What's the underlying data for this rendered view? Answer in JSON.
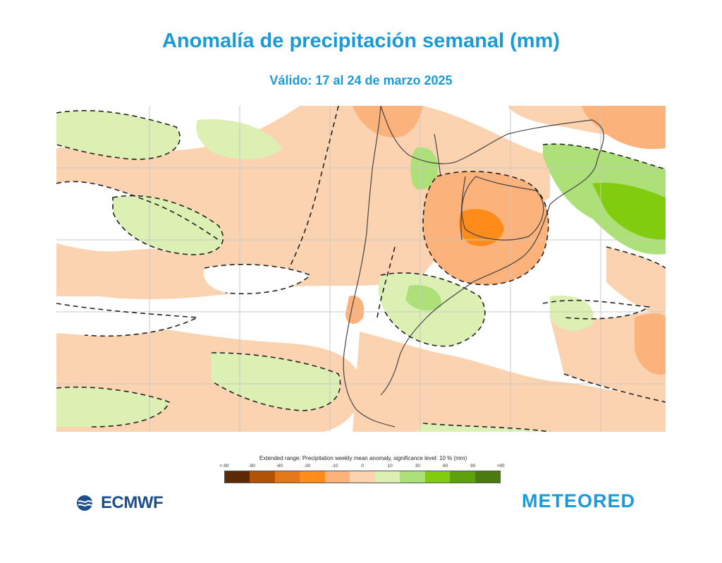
{
  "header": {
    "title": "Anomalía de precipitación semanal (mm)",
    "subtitle": "Válido: 17 al 24 de marzo 2025"
  },
  "legend": {
    "title": "Extended range: Precipitation weekly mean anomaly, significance level: 10 % (mm)",
    "tick_labels": [
      "<-90",
      "-90",
      "-60",
      "-30",
      "-10",
      "0",
      "10",
      "30",
      "60",
      "90",
      ">90"
    ],
    "colors": [
      "#5c2a06",
      "#b05307",
      "#e4781a",
      "#ff8c1a",
      "#fbb27b",
      "#fcd3b0",
      "#dcf0b4",
      "#aee07a",
      "#82cc10",
      "#5fa10d",
      "#4a7a10"
    ]
  },
  "logos": {
    "ecmwf": "ECMWF",
    "meteored": "METEORED"
  },
  "map": {
    "region": "South America south",
    "overlay_icons": [
      "coastline",
      "country-borders",
      "grid-lines",
      "significance-contours"
    ]
  }
}
